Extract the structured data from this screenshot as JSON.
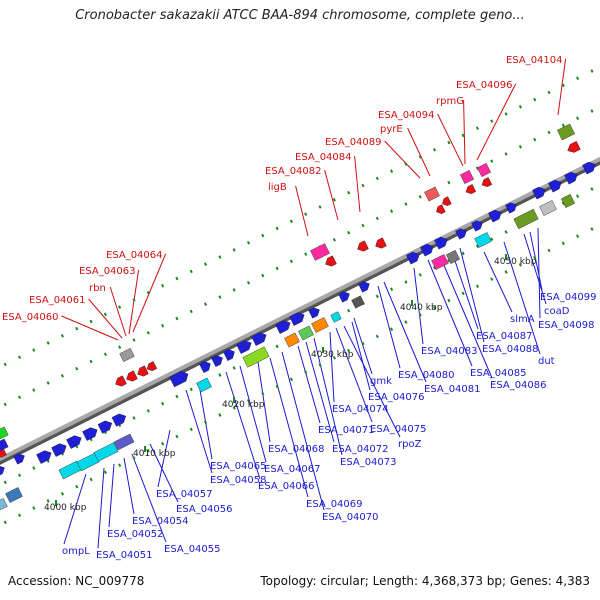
{
  "title": "Cronobacter sakazakii ATCC BAA-894 chromosome, complete geno...",
  "accession_label": "Accession: NC_009778",
  "summary_label": "Topology: circular; Length: 4,368,373 bp; Genes: 4,383",
  "colors": {
    "backbone": "#8c8c8c",
    "forward_cds": "#1f1fd6",
    "reverse_cds": "#e81010",
    "label_blue": "#1a1ad0",
    "label_red": "#d01010",
    "tick": "#1a8a1a",
    "cyan": "#00d8e8",
    "magenta": "#ff2aa0",
    "olive": "#6a9a20",
    "grey": "#9a9a9a"
  },
  "kbp_ticks": [
    "4000 kbp",
    "4010 kbp",
    "4020 kbp",
    "4030 kbp",
    "4040 kbp",
    "4050 kbp"
  ],
  "red_labels": [
    "ESA_04060",
    "ESA_04061",
    "rbn",
    "ESA_04063",
    "ESA_04064",
    "ligB",
    "ESA_04082",
    "ESA_04084",
    "ESA_04089",
    "pyrE",
    "ESA_04094",
    "rpmG",
    "ESA_04096",
    "ESA_04104"
  ],
  "blue_labels": [
    "ompL",
    "ESA_04051",
    "ESA_04052",
    "ESA_04054",
    "ESA_04055",
    "ESA_04056",
    "ESA_04057",
    "ESA_04058",
    "ESA_04065",
    "ESA_04066",
    "ESA_04067",
    "ESA_04068",
    "ESA_04069",
    "ESA_04070",
    "ESA_04071",
    "ESA_04072",
    "ESA_04073",
    "ESA_04074",
    "ESA_04075",
    "rpoZ",
    "ESA_04076",
    "gmk",
    "ESA_04080",
    "ESA_04081",
    "ESA_04083",
    "ESA_04085",
    "ESA_04086",
    "ESA_04087",
    "ESA_04088",
    "slmA",
    "dut",
    "coaD",
    "ESA_04099",
    "ESA_04098"
  ]
}
